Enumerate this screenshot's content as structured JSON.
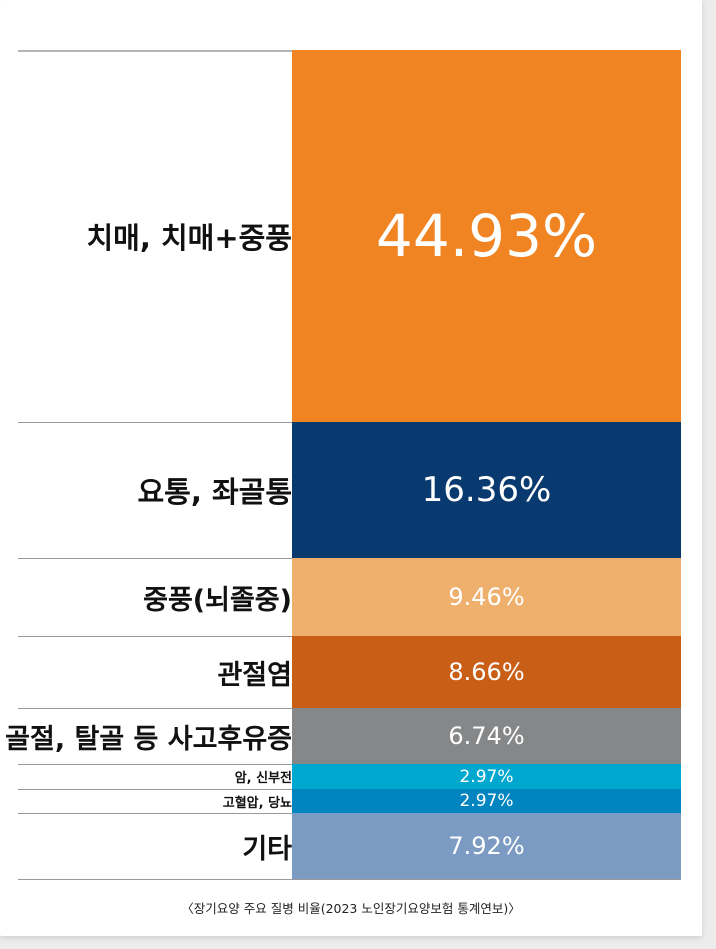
{
  "chart_data": {
    "type": "bar",
    "categories": [
      "치매, 치매+중풍",
      "요통, 좌골통",
      "중풍(뇌졸중)",
      "관절염",
      "골절, 탈골 등 사고후유증",
      "암, 신부전",
      "고혈압, 당뇨",
      "기타"
    ],
    "values": [
      44.93,
      16.36,
      9.46,
      8.66,
      6.74,
      2.97,
      2.97,
      7.92
    ],
    "value_labels": [
      "44.93%",
      "16.36%",
      "9.46%",
      "8.66%",
      "6.74%",
      "2.97%",
      "2.97%",
      "7.92%"
    ],
    "colors": [
      "#f08423",
      "#093a6f",
      "#efb06e",
      "#c95f16",
      "#858789",
      "#00a8d0",
      "#0085c0",
      "#7c9bc2"
    ],
    "unit": "%",
    "caption": "〈장기요양 주요 질병 비율(2023 노인장기요양보험 통계연보)〉"
  }
}
